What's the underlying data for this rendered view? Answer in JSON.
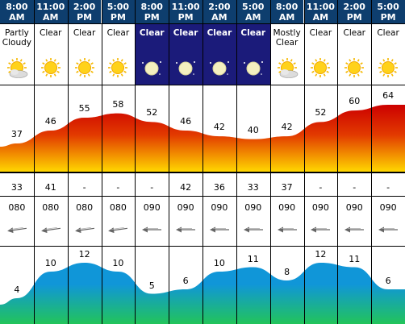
{
  "columns": [
    {
      "time": "8:00",
      "ampm": "AM",
      "condition": "Partly Cloudy",
      "icon": "sun-cloud-icon",
      "night": false,
      "temp": 37,
      "dew": "33",
      "wind_dir": "080",
      "wind_speed": 4
    },
    {
      "time": "11:00",
      "ampm": "AM",
      "condition": "Clear",
      "icon": "sun-icon",
      "night": false,
      "temp": 46,
      "dew": "41",
      "wind_dir": "080",
      "wind_speed": 10
    },
    {
      "time": "2:00",
      "ampm": "PM",
      "condition": "Clear",
      "icon": "sun-icon",
      "night": false,
      "temp": 55,
      "dew": "-",
      "wind_dir": "080",
      "wind_speed": 12
    },
    {
      "time": "5:00",
      "ampm": "PM",
      "condition": "Clear",
      "icon": "sun-icon",
      "night": false,
      "temp": 58,
      "dew": "-",
      "wind_dir": "080",
      "wind_speed": 10
    },
    {
      "time": "8:00",
      "ampm": "PM",
      "condition": "Clear",
      "icon": "moon-icon",
      "night": true,
      "temp": 52,
      "dew": "-",
      "wind_dir": "090",
      "wind_speed": 5
    },
    {
      "time": "11:00",
      "ampm": "PM",
      "condition": "Clear",
      "icon": "moon-icon",
      "night": true,
      "temp": 46,
      "dew": "42",
      "wind_dir": "090",
      "wind_speed": 6
    },
    {
      "time": "2:00",
      "ampm": "AM",
      "condition": "Clear",
      "icon": "moon-icon",
      "night": true,
      "temp": 42,
      "dew": "36",
      "wind_dir": "090",
      "wind_speed": 10
    },
    {
      "time": "5:00",
      "ampm": "AM",
      "condition": "Clear",
      "icon": "moon-icon",
      "night": true,
      "temp": 40,
      "dew": "33",
      "wind_dir": "090",
      "wind_speed": 11
    },
    {
      "time": "8:00",
      "ampm": "AM",
      "condition": "Mostly Clear",
      "icon": "sun-cloud-icon",
      "night": false,
      "temp": 42,
      "dew": "37",
      "wind_dir": "090",
      "wind_speed": 8
    },
    {
      "time": "11:00",
      "ampm": "AM",
      "condition": "Clear",
      "icon": "sun-icon",
      "night": false,
      "temp": 52,
      "dew": "-",
      "wind_dir": "090",
      "wind_speed": 12
    },
    {
      "time": "2:00",
      "ampm": "PM",
      "condition": "Clear",
      "icon": "sun-icon",
      "night": false,
      "temp": 60,
      "dew": "-",
      "wind_dir": "090",
      "wind_speed": 11
    },
    {
      "time": "5:00",
      "ampm": "PM",
      "condition": "Clear",
      "icon": "sun-icon",
      "night": false,
      "temp": 64,
      "dew": "-",
      "wind_dir": "090",
      "wind_speed": 6
    }
  ],
  "colors": {
    "header_bg": "#0e3e6e",
    "night_bg": "#1b1b7a",
    "temp_top": "#cc0000",
    "temp_bottom": "#ffd700",
    "wind_top": "#1096d8",
    "wind_bottom": "#22c45a"
  }
}
